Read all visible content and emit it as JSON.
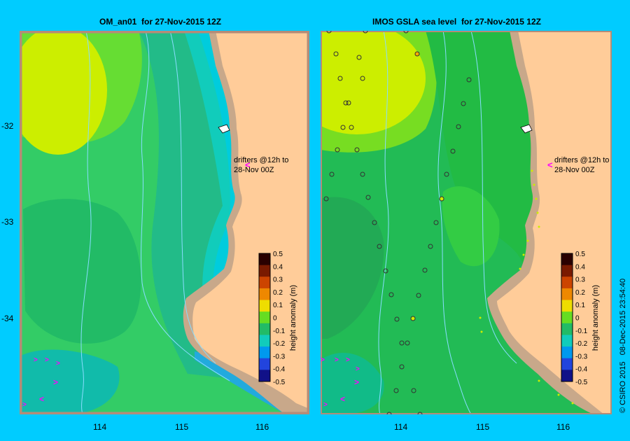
{
  "chart_data": [
    {
      "type": "heatmap",
      "title": "OM_an01  for 27-Nov-2015 12Z",
      "x_ticks": [
        "114",
        "115",
        "116"
      ],
      "y_ticks": [
        "-32",
        "-33",
        "-34"
      ],
      "xlim": [
        113.0,
        116.6
      ],
      "ylim": [
        -34.9,
        -31.0
      ],
      "annotation": [
        "drifters @12h to",
        "28-Nov 00Z"
      ],
      "colorbar": {
        "label": "height anomaly (m)",
        "ticks": [
          "0.5",
          "0.4",
          "0.3",
          "0.2",
          "0.1",
          "0",
          "-0.1",
          "-0.2",
          "-0.3",
          "-0.4",
          "-0.5"
        ],
        "range": [
          -0.5,
          0.5
        ]
      }
    },
    {
      "type": "heatmap",
      "title": "IMOS GSLA sea level  for 27-Nov-2015 12Z",
      "x_ticks": [
        "114",
        "115",
        "116"
      ],
      "xlim": [
        113.0,
        116.6
      ],
      "ylim": [
        -34.9,
        -31.0
      ],
      "annotation": [
        "drifters @12h to",
        "28-Nov 00Z"
      ],
      "colorbar": {
        "label": "height anomaly (m)",
        "ticks": [
          "0.5",
          "0.4",
          "0.3",
          "0.2",
          "0.1",
          "0",
          "-0.1",
          "-0.2",
          "-0.3",
          "-0.4",
          "-0.5"
        ],
        "range": [
          -0.5,
          0.5
        ]
      }
    }
  ],
  "credit": "© CSIRO 2015   08-Dec-2015 23:54:40",
  "colors": {
    "background": "#00ccff",
    "land": "#ffcc99",
    "shelf": "#c8a88a",
    "drifter": "#ff00ff"
  }
}
